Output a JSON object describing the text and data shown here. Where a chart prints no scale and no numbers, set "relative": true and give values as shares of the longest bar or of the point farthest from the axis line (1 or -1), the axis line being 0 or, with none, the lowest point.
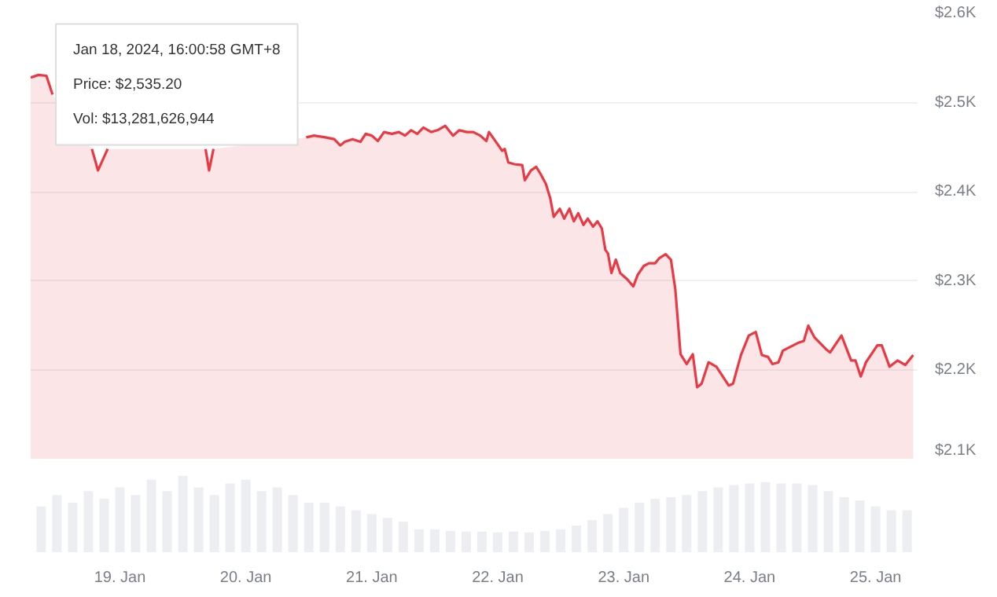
{
  "chart_data": [
    {
      "type": "area",
      "xlim": [
        "2024-01-18T07:00",
        "2024-01-25T08:00"
      ],
      "ylim": [
        2100,
        2600
      ],
      "yticks": [
        {
          "value": 2100,
          "label": "$2.1K"
        },
        {
          "value": 2200,
          "label": "$2.2K"
        },
        {
          "value": 2300,
          "label": "$2.3K"
        },
        {
          "value": 2400,
          "label": "$2.4K"
        },
        {
          "value": 2500,
          "label": "$2.5K"
        },
        {
          "value": 2600,
          "label": "$2.6K"
        }
      ],
      "grid": "y",
      "tick_labels": "y",
      "annotations": [
        {
          "text": "Jan 18, 2024, 16:00:58 GMT+8\nPrice: $2,535.20\nVol: $13,281,626,944",
          "x": "2024-01-18T07:00",
          "y": 2535.2
        }
      ],
      "series": [
        {
          "color": "#ea3943",
          "x": [
            "2024-01-18T07:00",
            "2024-01-18T08:30",
            "2024-01-18T10:00",
            "2024-01-18T11:10",
            "2024-01-18T14:00",
            "2024-01-18T18:40",
            "2024-01-18T19:50",
            "2024-01-18T21:40",
            "2024-01-19T06:00",
            "2024-01-19T16:20",
            "2024-01-19T16:40",
            "2024-01-19T17:00",
            "2024-01-19T17:25",
            "2024-01-19T17:50",
            "2024-01-20T00:00",
            "2024-01-20T11:30",
            "2024-01-20T13:00",
            "2024-01-20T15:10",
            "2024-01-20T16:50",
            "2024-01-20T18:00",
            "2024-01-20T18:50",
            "2024-01-20T20:20",
            "2024-01-20T21:50",
            "2024-01-20T22:50",
            "2024-01-21T00:00",
            "2024-01-21T01:10",
            "2024-01-21T02:20",
            "2024-01-21T03:50",
            "2024-01-21T05:10",
            "2024-01-21T06:20",
            "2024-01-21T07:30",
            "2024-01-21T08:40",
            "2024-01-21T09:50",
            "2024-01-21T11:20",
            "2024-01-21T12:30",
            "2024-01-21T14:00",
            "2024-01-21T15:30",
            "2024-01-21T16:40",
            "2024-01-21T18:10",
            "2024-01-21T19:20",
            "2024-01-21T20:40",
            "2024-01-21T21:50",
            "2024-01-21T22:20",
            "2024-01-21T23:40",
            "2024-01-22T00:50",
            "2024-01-22T01:20",
            "2024-01-22T02:00",
            "2024-01-22T03:10",
            "2024-01-22T04:40",
            "2024-01-22T05:10",
            "2024-01-22T06:20",
            "2024-01-22T07:20",
            "2024-01-22T08:10",
            "2024-01-22T09:10",
            "2024-01-22T10:00",
            "2024-01-22T10:40",
            "2024-01-22T11:50",
            "2024-01-22T12:40",
            "2024-01-22T13:40",
            "2024-01-22T14:30",
            "2024-01-22T15:20",
            "2024-01-22T16:20",
            "2024-01-22T17:10",
            "2024-01-22T18:10",
            "2024-01-22T19:00",
            "2024-01-22T19:50",
            "2024-01-22T20:30",
            "2024-01-22T21:00",
            "2024-01-22T21:40",
            "2024-01-22T22:30",
            "2024-01-22T23:20",
            "2024-01-23T00:40",
            "2024-01-23T01:50",
            "2024-01-23T02:40",
            "2024-01-23T03:50",
            "2024-01-23T04:50",
            "2024-01-23T06:00",
            "2024-01-23T06:50",
            "2024-01-23T08:00",
            "2024-01-23T09:00",
            "2024-01-23T09:50",
            "2024-01-23T10:50",
            "2024-01-23T12:00",
            "2024-01-23T13:10",
            "2024-01-23T14:00",
            "2024-01-23T14:50",
            "2024-01-23T16:10",
            "2024-01-23T17:40",
            "2024-01-23T20:00",
            "2024-01-23T20:50",
            "2024-01-23T22:20",
            "2024-01-23T23:50",
            "2024-01-24T01:10",
            "2024-01-24T02:20",
            "2024-01-24T03:30",
            "2024-01-24T04:20",
            "2024-01-24T05:30",
            "2024-01-24T06:20",
            "2024-01-24T09:20",
            "2024-01-24T10:20",
            "2024-01-24T11:10",
            "2024-01-24T12:20",
            "2024-01-24T14:30",
            "2024-01-24T15:20",
            "2024-01-24T17:30",
            "2024-01-24T19:20",
            "2024-01-24T20:10",
            "2024-01-24T21:10",
            "2024-01-24T22:10",
            "2024-01-25T00:20",
            "2024-01-25T01:10",
            "2024-01-25T02:40",
            "2024-01-25T04:10",
            "2024-01-25T05:40",
            "2024-01-25T07:10"
          ],
          "values": [
            2528,
            2531,
            2530,
            2509,
            null,
            2448,
            2424,
            2448,
            null,
            2448,
            2436,
            2424,
            2436,
            2448,
            null,
            2461,
            2463,
            2461,
            2459,
            2452,
            2456,
            2459,
            2456,
            2465,
            2463,
            2457,
            2467,
            2465,
            2467,
            2463,
            2469,
            2465,
            2472,
            2467,
            2469,
            2474,
            2463,
            2469,
            2467,
            2467,
            2463,
            2457,
            2467,
            2456,
            2446,
            2448,
            2433,
            2431,
            2430,
            2413,
            2424,
            2428,
            2420,
            2409,
            2393,
            2372,
            2381,
            2370,
            2381,
            2367,
            2376,
            2363,
            2370,
            2361,
            2367,
            2359,
            2335,
            2331,
            2309,
            2324,
            2309,
            2302,
            2294,
            2307,
            2317,
            2320,
            2320,
            2326,
            2330,
            2324,
            2291,
            2218,
            2207,
            2218,
            2181,
            2185,
            2209,
            2204,
            2183,
            2185,
            2217,
            2239,
            2243,
            2217,
            2215,
            2207,
            2209,
            2222,
            2231,
            2233,
            2250,
            2237,
            2224,
            2220,
            2239,
            2211,
            2211,
            2193,
            2209,
            2228,
            2228,
            2204,
            2211,
            2206,
            2217
          ]
        }
      ]
    },
    {
      "type": "bar",
      "relative": true,
      "color": "#eceef1",
      "xlim": [
        "2024-01-18T07:00",
        "2024-01-25T08:00"
      ],
      "xticks": [
        {
          "value": "2024-01-19",
          "label": "19. Jan"
        },
        {
          "value": "2024-01-20",
          "label": "20. Jan"
        },
        {
          "value": "2024-01-21",
          "label": "21. Jan"
        },
        {
          "value": "2024-01-22",
          "label": "22. Jan"
        },
        {
          "value": "2024-01-23",
          "label": "23. Jan"
        },
        {
          "value": "2024-01-24",
          "label": "24. Jan"
        },
        {
          "value": "2024-01-25",
          "label": "25. Jan"
        }
      ],
      "tick_labels": "x",
      "x": [
        "2024-01-18T09:00",
        "2024-01-18T12:00",
        "2024-01-18T15:00",
        "2024-01-18T18:00",
        "2024-01-18T21:00",
        "2024-01-19T00:00",
        "2024-01-19T03:00",
        "2024-01-19T06:00",
        "2024-01-19T09:00",
        "2024-01-19T12:00",
        "2024-01-19T15:00",
        "2024-01-19T18:00",
        "2024-01-19T21:00",
        "2024-01-20T00:00",
        "2024-01-20T03:00",
        "2024-01-20T06:00",
        "2024-01-20T09:00",
        "2024-01-20T12:00",
        "2024-01-20T15:00",
        "2024-01-20T18:00",
        "2024-01-20T21:00",
        "2024-01-21T00:00",
        "2024-01-21T03:00",
        "2024-01-21T06:00",
        "2024-01-21T09:00",
        "2024-01-21T12:00",
        "2024-01-21T15:00",
        "2024-01-21T18:00",
        "2024-01-21T21:00",
        "2024-01-22T00:00",
        "2024-01-22T03:00",
        "2024-01-22T06:00",
        "2024-01-22T09:00",
        "2024-01-22T12:00",
        "2024-01-22T15:00",
        "2024-01-22T18:00",
        "2024-01-22T21:00",
        "2024-01-23T00:00",
        "2024-01-23T03:00",
        "2024-01-23T06:00",
        "2024-01-23T09:00",
        "2024-01-23T12:00",
        "2024-01-23T15:00",
        "2024-01-23T18:00",
        "2024-01-23T21:00",
        "2024-01-24T00:00",
        "2024-01-24T03:00",
        "2024-01-24T06:00",
        "2024-01-24T09:00",
        "2024-01-24T12:00",
        "2024-01-24T15:00",
        "2024-01-24T18:00",
        "2024-01-24T21:00",
        "2024-01-25T00:00",
        "2024-01-25T03:00",
        "2024-01-25T06:00"
      ],
      "values": [
        0.6,
        0.75,
        0.65,
        0.8,
        0.7,
        0.85,
        0.75,
        0.95,
        0.8,
        1.0,
        0.85,
        0.75,
        0.9,
        0.95,
        0.8,
        0.85,
        0.75,
        0.65,
        0.65,
        0.6,
        0.55,
        0.5,
        0.45,
        0.4,
        0.3,
        0.3,
        0.28,
        0.27,
        0.27,
        0.26,
        0.27,
        0.26,
        0.28,
        0.3,
        0.35,
        0.42,
        0.5,
        0.58,
        0.65,
        0.7,
        0.72,
        0.75,
        0.8,
        0.85,
        0.88,
        0.9,
        0.92,
        0.9,
        0.9,
        0.88,
        0.8,
        0.72,
        0.68,
        0.6,
        0.55,
        0.55
      ]
    }
  ]
}
